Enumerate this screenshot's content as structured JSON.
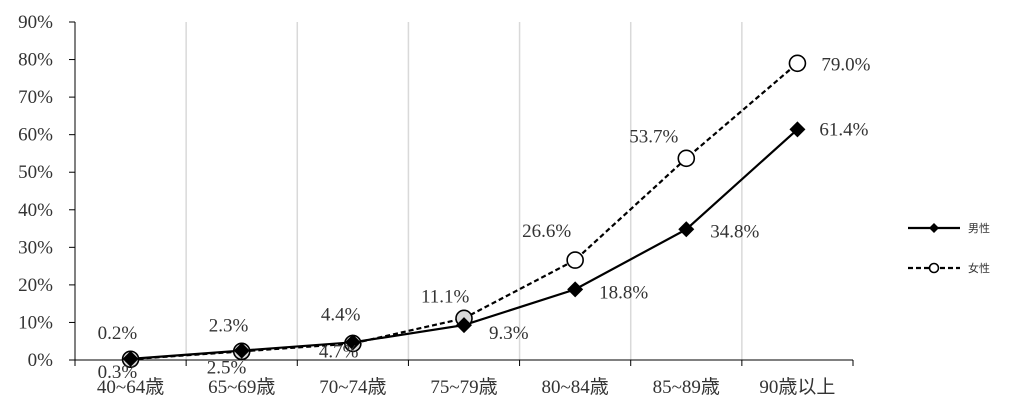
{
  "chart_data": {
    "type": "line",
    "title": "",
    "xlabel": "",
    "ylabel": "",
    "categories": [
      "40~64歳",
      "65~69歳",
      "70~74歳",
      "75~79歳",
      "80~84歳",
      "85~89歳",
      "90歳以上"
    ],
    "ylim": [
      0,
      90
    ],
    "yticks": [
      "0%",
      "10%",
      "20%",
      "30%",
      "40%",
      "50%",
      "60%",
      "70%",
      "80%",
      "90%"
    ],
    "grid": "vertical",
    "legend_position": "right",
    "series": [
      {
        "name": "男性",
        "values": [
          0.3,
          2.5,
          4.7,
          9.3,
          18.8,
          34.8,
          61.4
        ],
        "labels": [
          "0.3%",
          "2.5%",
          "4.7%",
          "9.3%",
          "18.8%",
          "34.8%",
          "61.4%"
        ],
        "line": "solid",
        "marker": "diamond-filled",
        "color": "#000000"
      },
      {
        "name": "女性",
        "values": [
          0.2,
          2.3,
          4.4,
          11.1,
          26.6,
          53.7,
          79.0
        ],
        "labels": [
          "0.2%",
          "2.3%",
          "4.4%",
          "11.1%",
          "26.6%",
          "53.7%",
          "79.0%"
        ],
        "line": "dashed",
        "marker": "circle-open",
        "color": "#000000"
      }
    ]
  }
}
